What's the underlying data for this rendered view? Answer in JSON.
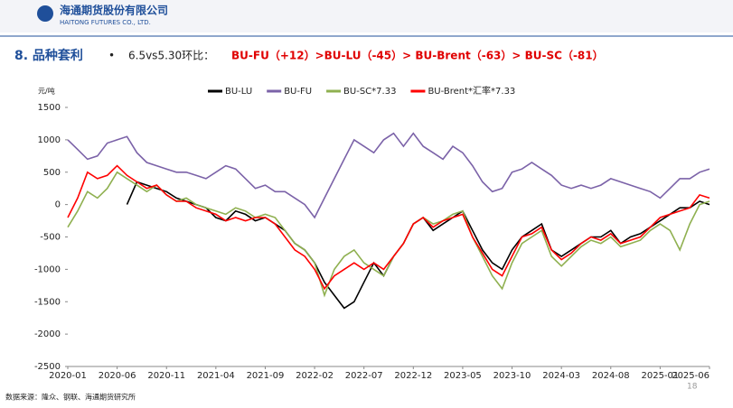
{
  "header": {
    "company": "海通期货股份有限公司",
    "company_en": "HAITONG FUTURES CO., LTD."
  },
  "section": {
    "title": "8. 品种套利",
    "bullet_lead": "6.5vs5.30环比：",
    "bullet_highlight": "BU-FU（+12）>BU-LU（-45）> BU-Brent（-63）> BU-SC（-81）"
  },
  "chart_data": {
    "type": "line",
    "y_unit": "元/吨",
    "x": [
      "2020-01",
      "2020-02",
      "2020-03",
      "2020-04",
      "2020-05",
      "2020-06",
      "2020-07",
      "2020-08",
      "2020-09",
      "2020-10",
      "2020-11",
      "2020-12",
      "2021-01",
      "2021-02",
      "2021-03",
      "2021-04",
      "2021-05",
      "2021-06",
      "2021-07",
      "2021-08",
      "2021-09",
      "2021-10",
      "2021-11",
      "2021-12",
      "2022-01",
      "2022-02",
      "2022-03",
      "2022-04",
      "2022-05",
      "2022-06",
      "2022-07",
      "2022-08",
      "2022-09",
      "2022-10",
      "2022-11",
      "2022-12",
      "2023-01",
      "2023-02",
      "2023-03",
      "2023-04",
      "2023-05",
      "2023-06",
      "2023-07",
      "2023-08",
      "2023-09",
      "2023-10",
      "2023-11",
      "2023-12",
      "2024-01",
      "2024-02",
      "2024-03",
      "2024-04",
      "2024-05",
      "2024-06",
      "2024-07",
      "2024-08",
      "2024-09",
      "2024-10",
      "2024-11",
      "2024-12",
      "2025-01",
      "2025-02",
      "2025-03",
      "2025-04",
      "2025-05",
      "2025-06"
    ],
    "xticks": [
      "2020-01",
      "2020-06",
      "2020-11",
      "2021-04",
      "2021-09",
      "2022-02",
      "2022-07",
      "2022-12",
      "2023-05",
      "2023-10",
      "2024-03",
      "2024-08",
      "2025-01",
      "2025-06"
    ],
    "ylim": [
      -2500,
      1500
    ],
    "yticks": [
      -2500,
      -2000,
      -1500,
      -1000,
      -500,
      0,
      500,
      1000,
      1500
    ],
    "series": [
      {
        "name": "BU-LU",
        "color": "#000000",
        "values": [
          null,
          null,
          null,
          null,
          null,
          null,
          0,
          350,
          300,
          250,
          200,
          100,
          50,
          0,
          -50,
          -200,
          -250,
          -100,
          -150,
          -250,
          -200,
          -300,
          -400,
          -600,
          -700,
          -900,
          -1200,
          -1400,
          -1600,
          -1500,
          -1200,
          -900,
          -1100,
          -800,
          -600,
          -300,
          -200,
          -400,
          -300,
          -200,
          -100,
          -400,
          -700,
          -900,
          -1000,
          -700,
          -500,
          -400,
          -300,
          -700,
          -800,
          -700,
          -600,
          -500,
          -500,
          -400,
          -600,
          -500,
          -450,
          -350,
          -250,
          -150,
          -50,
          -50,
          50,
          0
        ]
      },
      {
        "name": "BU-FU",
        "color": "#7b62a8",
        "values": [
          1000,
          850,
          700,
          750,
          950,
          1000,
          1050,
          800,
          650,
          600,
          550,
          500,
          500,
          450,
          400,
          500,
          600,
          550,
          400,
          250,
          300,
          200,
          200,
          100,
          0,
          -200,
          100,
          400,
          700,
          1000,
          900,
          800,
          1000,
          1100,
          900,
          1100,
          900,
          800,
          700,
          900,
          800,
          600,
          350,
          200,
          250,
          500,
          550,
          650,
          550,
          450,
          300,
          250,
          300,
          250,
          300,
          400,
          350,
          300,
          250,
          200,
          100,
          250,
          400,
          400,
          500,
          550
        ]
      },
      {
        "name": "BU-SC*7.33",
        "color": "#8fb050",
        "values": [
          -350,
          -100,
          200,
          100,
          250,
          500,
          400,
          300,
          200,
          300,
          150,
          50,
          100,
          0,
          -50,
          -100,
          -150,
          -50,
          -100,
          -200,
          -150,
          -200,
          -400,
          -600,
          -700,
          -900,
          -1400,
          -1000,
          -800,
          -700,
          -900,
          -1000,
          -1100,
          -800,
          -600,
          -300,
          -200,
          -300,
          -250,
          -150,
          -100,
          -500,
          -800,
          -1100,
          -1300,
          -900,
          -600,
          -500,
          -400,
          -800,
          -950,
          -800,
          -650,
          -550,
          -600,
          -500,
          -650,
          -600,
          -550,
          -400,
          -300,
          -400,
          -700,
          -300,
          0,
          50
        ]
      },
      {
        "name": "BU-Brent*汇率*7.33",
        "color": "#ff0000",
        "values": [
          -200,
          100,
          500,
          400,
          450,
          600,
          450,
          350,
          250,
          300,
          150,
          50,
          50,
          -50,
          -100,
          -150,
          -250,
          -200,
          -250,
          -200,
          -200,
          -300,
          -500,
          -700,
          -800,
          -1000,
          -1300,
          -1100,
          -1000,
          -900,
          -1000,
          -900,
          -1000,
          -800,
          -600,
          -300,
          -200,
          -350,
          -250,
          -200,
          -150,
          -500,
          -750,
          -1000,
          -1100,
          -800,
          -500,
          -450,
          -350,
          -700,
          -850,
          -750,
          -600,
          -500,
          -550,
          -450,
          -600,
          -550,
          -500,
          -350,
          -200,
          -150,
          -100,
          -50,
          150,
          100
        ]
      }
    ]
  },
  "footer": {
    "source": "数据来源：隆众、钢联、海通期货研究所",
    "page": "18"
  }
}
